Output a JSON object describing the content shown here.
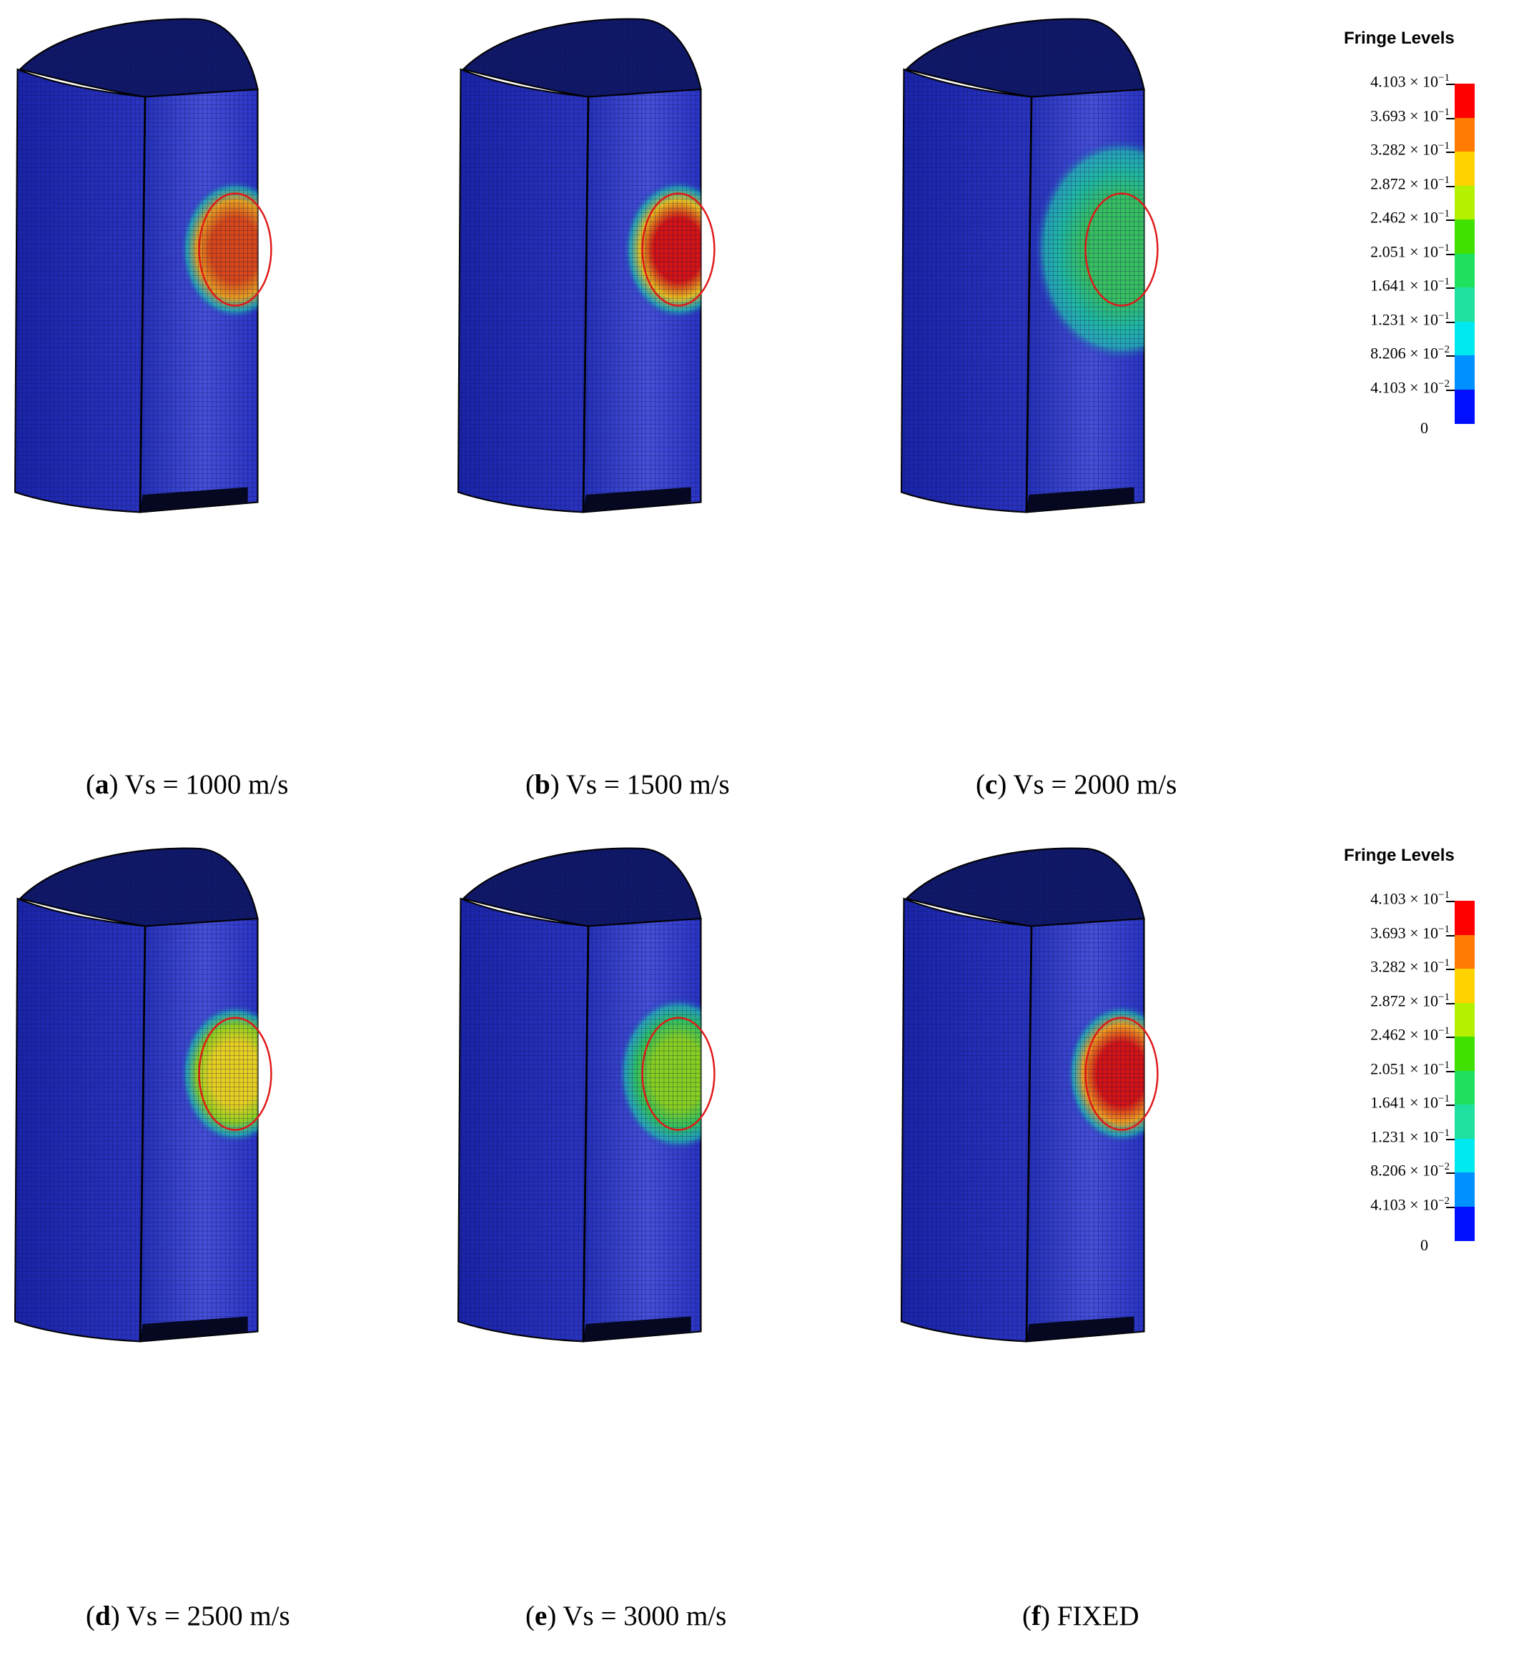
{
  "panels": [
    {
      "id": "a",
      "letter": "a",
      "caption": " Vs = 1000 m/s",
      "hot": "#d84818",
      "mid": "#e8a020",
      "glow": 1.0
    },
    {
      "id": "b",
      "letter": "b",
      "caption": " Vs = 1500 m/s",
      "hot": "#d41414",
      "mid": "#e8c020",
      "glow": 1.0
    },
    {
      "id": "c",
      "letter": "c",
      "caption": " Vs = 2000 m/s",
      "hot": "#38c060",
      "mid": "#20b8a0",
      "glow": 1.6
    },
    {
      "id": "d",
      "letter": "d",
      "caption": " Vs = 2500 m/s",
      "hot": "#e8d020",
      "mid": "#90d020",
      "glow": 1.0
    },
    {
      "id": "e",
      "letter": "e",
      "caption": " Vs = 3000 m/s",
      "hot": "#88d020",
      "mid": "#30c060",
      "glow": 1.1
    },
    {
      "id": "f",
      "letter": "f",
      "caption": " FIXED",
      "hot": "#d41414",
      "mid": "#f0a020",
      "glow": 1.0
    }
  ],
  "legend": {
    "title": "Fringe Levels",
    "levels": [
      {
        "mantissa": "4.103",
        "exp": "−1"
      },
      {
        "mantissa": "3.693",
        "exp": "−1"
      },
      {
        "mantissa": "3.282",
        "exp": "−1"
      },
      {
        "mantissa": "2.872",
        "exp": "−1"
      },
      {
        "mantissa": "2.462",
        "exp": "−1"
      },
      {
        "mantissa": "2.051",
        "exp": "−1"
      },
      {
        "mantissa": "1.641",
        "exp": "−1"
      },
      {
        "mantissa": "1.231",
        "exp": "−1"
      },
      {
        "mantissa": "8.206",
        "exp": "−2"
      },
      {
        "mantissa": "4.103",
        "exp": "−2"
      },
      {
        "mantissa": "0",
        "exp": ""
      }
    ],
    "colors": [
      "#ff0000",
      "#ff7a00",
      "#ffd200",
      "#b4f000",
      "#40e000",
      "#20e060",
      "#20e0a0",
      "#00e8f0",
      "#0090ff",
      "#0010ff"
    ]
  }
}
